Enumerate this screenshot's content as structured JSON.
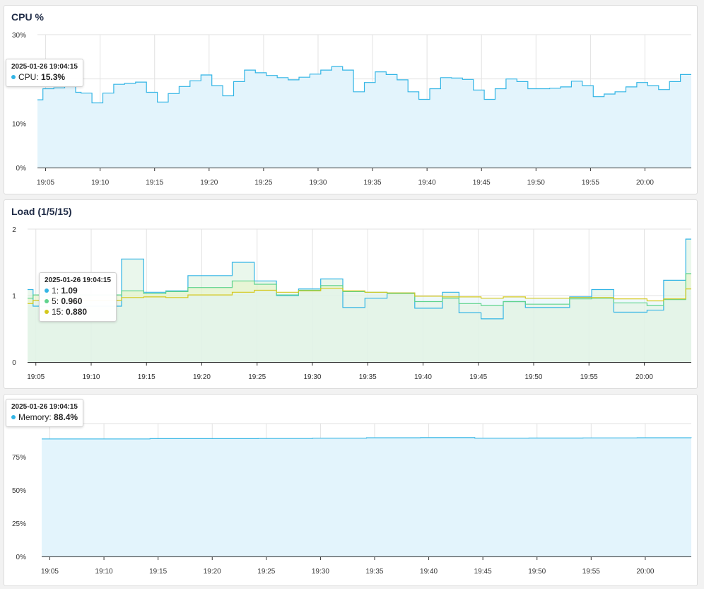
{
  "colors": {
    "cpu": "#33b5e5",
    "cpu_fill": "#e3f4fc",
    "load1": "#33b5e5",
    "load5": "#5fd38d",
    "load15": "#d4c81c",
    "load_fill": "#d9f1dc",
    "mem": "#33b5e5",
    "mem_fill": "#e3f4fc",
    "grid": "#e2e2e2",
    "title": "#1f2b46"
  },
  "chart_data": [
    {
      "id": "cpu",
      "type": "area",
      "title": "CPU %",
      "y_ticks": [
        "0%",
        "10%",
        "30%"
      ],
      "ylim": [
        0,
        30
      ],
      "x_ticks": [
        "19:05",
        "19:10",
        "19:15",
        "19:20",
        "19:25",
        "19:30",
        "19:35",
        "19:40",
        "19:45",
        "19:50",
        "19:55",
        "20:00"
      ],
      "x_range": [
        "19:04:15",
        "20:04:15"
      ],
      "series": [
        {
          "name": "CPU",
          "points": [
            [
              0,
              15.3
            ],
            [
              0.5,
              17.8
            ],
            [
              1.5,
              18.0
            ],
            [
              2.5,
              18.5
            ],
            [
              3.5,
              17.0
            ],
            [
              4,
              16.8
            ],
            [
              5,
              14.6
            ],
            [
              6,
              16.8
            ],
            [
              7,
              18.8
            ],
            [
              8,
              19.0
            ],
            [
              9,
              19.3
            ],
            [
              10,
              17.0
            ],
            [
              11,
              14.8
            ],
            [
              12,
              16.7
            ],
            [
              13,
              18.3
            ],
            [
              14,
              19.6
            ],
            [
              15,
              20.9
            ],
            [
              16,
              18.5
            ],
            [
              17,
              16.2
            ],
            [
              18,
              19.4
            ],
            [
              19,
              22.0
            ],
            [
              20,
              21.4
            ],
            [
              21,
              20.8
            ],
            [
              22,
              20.3
            ],
            [
              23,
              19.8
            ],
            [
              24,
              20.4
            ],
            [
              25,
              21.1
            ],
            [
              26,
              22.0
            ],
            [
              27,
              22.8
            ],
            [
              28,
              22.0
            ],
            [
              29,
              17.1
            ],
            [
              30,
              19.2
            ],
            [
              31,
              21.6
            ],
            [
              32,
              21.0
            ],
            [
              33,
              19.8
            ],
            [
              34,
              17.1
            ],
            [
              35,
              15.4
            ],
            [
              36,
              17.8
            ],
            [
              37,
              20.3
            ],
            [
              38,
              20.2
            ],
            [
              39,
              19.9
            ],
            [
              40,
              17.5
            ],
            [
              41,
              15.4
            ],
            [
              42,
              17.8
            ],
            [
              43,
              20.0
            ],
            [
              44,
              19.4
            ],
            [
              45,
              17.8
            ],
            [
              46,
              17.8
            ],
            [
              47,
              17.9
            ],
            [
              48,
              18.2
            ],
            [
              49,
              19.5
            ],
            [
              50,
              18.5
            ],
            [
              51,
              16.0
            ],
            [
              52,
              16.6
            ],
            [
              53,
              17.1
            ],
            [
              54,
              18.2
            ],
            [
              55,
              19.2
            ],
            [
              56,
              18.5
            ],
            [
              57,
              17.6
            ],
            [
              58,
              19.4
            ],
            [
              59,
              21.0
            ]
          ]
        }
      ],
      "tooltip": {
        "time": "2025-01-26 19:04:15",
        "rows": [
          {
            "label": "CPU",
            "value": "15.3%"
          }
        ]
      }
    },
    {
      "id": "load",
      "type": "area",
      "title": "Load (1/5/15)",
      "y_ticks": [
        "0",
        "1",
        "2"
      ],
      "ylim": [
        0,
        2
      ],
      "x_ticks": [
        "19:05",
        "19:10",
        "19:15",
        "19:20",
        "19:25",
        "19:30",
        "19:35",
        "19:40",
        "19:45",
        "19:50",
        "19:55",
        "20:00"
      ],
      "x_range": [
        "19:04:15",
        "20:04:15"
      ],
      "series": [
        {
          "name": "1",
          "points": [
            [
              0,
              1.09
            ],
            [
              0.5,
              0.84
            ],
            [
              8.5,
              1.55
            ],
            [
              10.5,
              1.05
            ],
            [
              12.5,
              1.07
            ],
            [
              14.5,
              1.3
            ],
            [
              18.5,
              1.5
            ],
            [
              20.5,
              1.22
            ],
            [
              22.5,
              1.0
            ],
            [
              24.5,
              1.1
            ],
            [
              26.5,
              1.25
            ],
            [
              28.5,
              0.82
            ],
            [
              30.5,
              0.96
            ],
            [
              32.5,
              1.04
            ],
            [
              35,
              0.81
            ],
            [
              37.5,
              1.05
            ],
            [
              39,
              0.74
            ],
            [
              41,
              0.65
            ],
            [
              43,
              0.91
            ],
            [
              45,
              0.82
            ],
            [
              49,
              0.98
            ],
            [
              51,
              1.09
            ],
            [
              53,
              0.75
            ],
            [
              56,
              0.78
            ],
            [
              57.5,
              1.23
            ],
            [
              59.5,
              1.85
            ]
          ]
        },
        {
          "name": "5",
          "points": [
            [
              0,
              0.96
            ],
            [
              0.5,
              1.01
            ],
            [
              8.5,
              1.07
            ],
            [
              10.5,
              1.03
            ],
            [
              12.5,
              1.06
            ],
            [
              14.5,
              1.12
            ],
            [
              18.5,
              1.22
            ],
            [
              20.5,
              1.17
            ],
            [
              22.5,
              1.01
            ],
            [
              24.5,
              1.08
            ],
            [
              26.5,
              1.15
            ],
            [
              28.5,
              1.06
            ],
            [
              30.5,
              1.05
            ],
            [
              32.5,
              1.03
            ],
            [
              35,
              0.91
            ],
            [
              37.5,
              0.96
            ],
            [
              39,
              0.88
            ],
            [
              41,
              0.85
            ],
            [
              43,
              0.91
            ],
            [
              45,
              0.87
            ],
            [
              49,
              0.95
            ],
            [
              51,
              0.96
            ],
            [
              53,
              0.89
            ],
            [
              56,
              0.85
            ],
            [
              57.5,
              0.94
            ],
            [
              59.5,
              1.33
            ]
          ]
        },
        {
          "name": "15",
          "points": [
            [
              0,
              0.88
            ],
            [
              0.5,
              0.93
            ],
            [
              8.5,
              0.97
            ],
            [
              10.5,
              0.98
            ],
            [
              12.5,
              0.97
            ],
            [
              14.5,
              1.01
            ],
            [
              18.5,
              1.05
            ],
            [
              20.5,
              1.08
            ],
            [
              22.5,
              1.05
            ],
            [
              24.5,
              1.07
            ],
            [
              26.5,
              1.11
            ],
            [
              28.5,
              1.07
            ],
            [
              30.5,
              1.05
            ],
            [
              32.5,
              1.04
            ],
            [
              35,
              0.99
            ],
            [
              37.5,
              0.98
            ],
            [
              39,
              0.98
            ],
            [
              41,
              0.96
            ],
            [
              43,
              0.98
            ],
            [
              45,
              0.96
            ],
            [
              49,
              0.97
            ],
            [
              51,
              0.97
            ],
            [
              53,
              0.95
            ],
            [
              56,
              0.92
            ],
            [
              57.5,
              0.95
            ],
            [
              59.5,
              1.1
            ]
          ]
        }
      ],
      "tooltip": {
        "time": "2025-01-26 19:04:15",
        "rows": [
          {
            "label": "1",
            "value": "1.09"
          },
          {
            "label": "5",
            "value": "0.960"
          },
          {
            "label": "15",
            "value": "0.880"
          }
        ]
      }
    },
    {
      "id": "memory",
      "type": "area",
      "title": "",
      "y_ticks": [
        "0%",
        "25%",
        "50%",
        "75%"
      ],
      "ylim": [
        0,
        100
      ],
      "x_ticks": [
        "19:05",
        "19:10",
        "19:15",
        "19:20",
        "19:25",
        "19:30",
        "19:35",
        "19:40",
        "19:45",
        "19:50",
        "19:55",
        "20:00"
      ],
      "x_range": [
        "19:04:15",
        "20:04:15"
      ],
      "series": [
        {
          "name": "Memory",
          "points": [
            [
              0,
              88.4
            ],
            [
              10,
              88.6
            ],
            [
              20,
              88.7
            ],
            [
              25,
              89.0
            ],
            [
              30,
              89.3
            ],
            [
              35,
              89.4
            ],
            [
              40,
              89.0
            ],
            [
              45,
              89.1
            ],
            [
              50,
              89.2
            ],
            [
              55,
              89.3
            ],
            [
              60,
              89.2
            ]
          ]
        }
      ],
      "tooltip": {
        "time": "2025-01-26 19:04:15",
        "rows": [
          {
            "label": "Memory",
            "value": "88.4%"
          }
        ]
      }
    }
  ]
}
